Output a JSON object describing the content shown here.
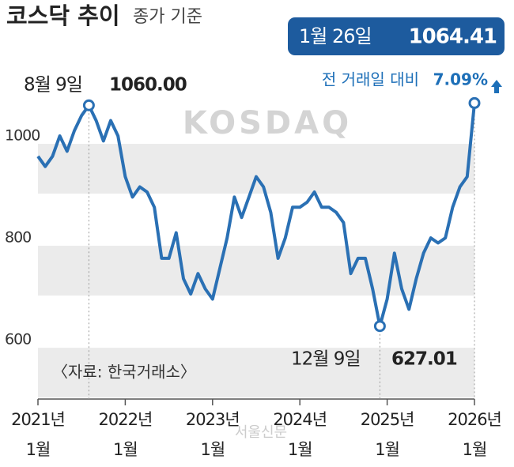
{
  "chart_data": {
    "type": "line",
    "title": "코스닥 추이",
    "subtitle": "종가 기준",
    "source": "〈자료: 한국거래소〉",
    "watermark": "KOSDAQ",
    "credit": "서울신문",
    "x": [
      "2021-01",
      "2021-02",
      "2021-03",
      "2021-04",
      "2021-05",
      "2021-06",
      "2021-07",
      "2021-08",
      "2021-09",
      "2021-10",
      "2021-11",
      "2021-12",
      "2022-01",
      "2022-02",
      "2022-03",
      "2022-04",
      "2022-05",
      "2022-06",
      "2022-07",
      "2022-08",
      "2022-09",
      "2022-10",
      "2022-11",
      "2022-12",
      "2023-01",
      "2023-02",
      "2023-03",
      "2023-04",
      "2023-05",
      "2023-06",
      "2023-07",
      "2023-08",
      "2023-09",
      "2023-10",
      "2023-11",
      "2023-12",
      "2024-01",
      "2024-02",
      "2024-03",
      "2024-04",
      "2024-05",
      "2024-06",
      "2024-07",
      "2024-08",
      "2024-09",
      "2024-10",
      "2024-11",
      "2024-12",
      "2025-01",
      "2025-02",
      "2025-03",
      "2025-04",
      "2025-05",
      "2025-06",
      "2025-07",
      "2025-08",
      "2025-09",
      "2025-10",
      "2025-11",
      "2025-12",
      "2026-01"
    ],
    "series": [
      {
        "name": "코스닥",
        "color": "#2a70b4",
        "values": [
          960,
          940,
          960,
          1000,
          970,
          1010,
          1040,
          1060,
          1030,
          990,
          1030,
          1000,
          920,
          880,
          900,
          890,
          860,
          760,
          760,
          810,
          720,
          690,
          730,
          700,
          680,
          740,
          800,
          880,
          840,
          880,
          920,
          900,
          850,
          760,
          800,
          860,
          860,
          870,
          890,
          860,
          860,
          850,
          830,
          730,
          760,
          760,
          700,
          627.01,
          680,
          770,
          700,
          660,
          720,
          770,
          800,
          790,
          800,
          860,
          900,
          920,
          1064.41
        ]
      }
    ],
    "annotations": [
      {
        "x": "2021-08",
        "date": "8월 9일",
        "value": 1060,
        "value_label": "1060.00"
      },
      {
        "x": "2024-12",
        "date": "12월 9일",
        "value": 627.01,
        "value_label": "627.01"
      },
      {
        "x": "2026-01",
        "date": "1월 26일",
        "value": 1064.41,
        "value_label": "1064.41"
      }
    ],
    "change": {
      "text": "전 거래일 대비",
      "value": 7.09,
      "value_label": "7.09%"
    },
    "ylim": [
      484,
      1110
    ],
    "yticks": [
      600,
      800,
      1000
    ],
    "xticks": [
      {
        "value": "2021-01",
        "label": "2021년 1월"
      },
      {
        "value": "2022-01",
        "label": "2022년 1월"
      },
      {
        "value": "2023-01",
        "label": "2023년 1월"
      },
      {
        "value": "2024-01",
        "label": "2024년 1월"
      },
      {
        "value": "2025-01",
        "label": "2025년 1월"
      },
      {
        "value": "2026-01",
        "label": "2026년 1월"
      }
    ],
    "stripes": true
  }
}
